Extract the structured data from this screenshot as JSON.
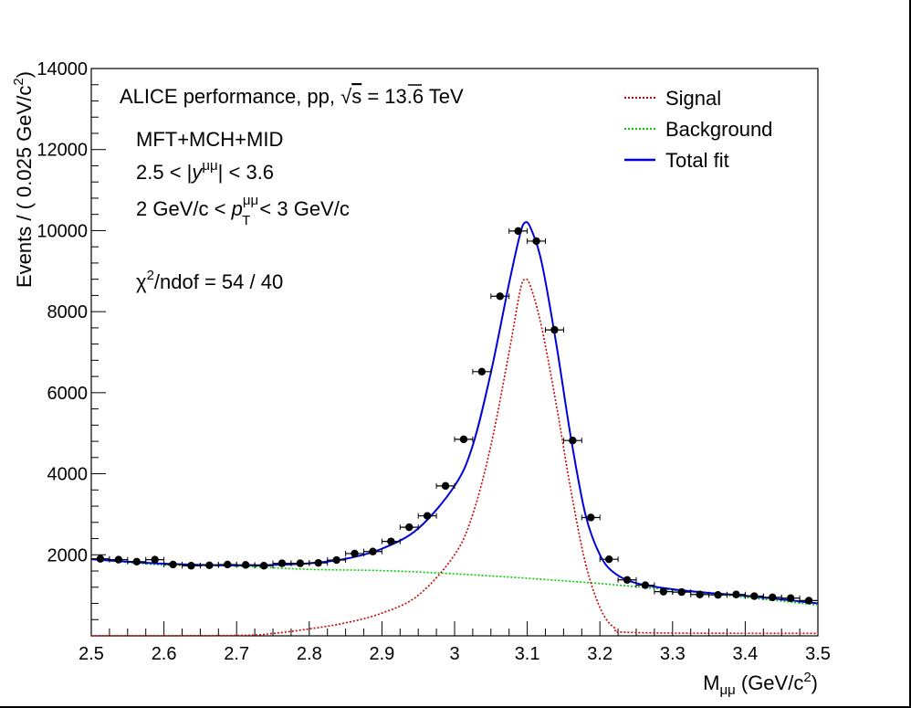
{
  "chart_data": {
    "type": "scatter",
    "xlabel": "M",
    "xlabel_sub": "μμ",
    "xlabel_unit": " (GeV/c",
    "xlabel_unit_sup": "2",
    "xlabel_unit_close": ")",
    "ylabel": "Events / ( 0.025 GeV/c",
    "ylabel_sup": "2",
    "ylabel_close": ")",
    "xlim": [
      2.5,
      3.5
    ],
    "ylim": [
      0,
      14000
    ],
    "x_tick_labels": [
      "2.5",
      "2.6",
      "2.7",
      "2.8",
      "2.9",
      "3",
      "3.1",
      "3.2",
      "3.3",
      "3.4",
      "3.5"
    ],
    "x_tick_values": [
      2.5,
      2.6,
      2.7,
      2.8,
      2.9,
      3.0,
      3.1,
      3.2,
      3.3,
      3.4,
      3.5
    ],
    "y_tick_labels": [
      "2000",
      "4000",
      "6000",
      "8000",
      "10000",
      "12000",
      "14000"
    ],
    "y_tick_values": [
      2000,
      4000,
      6000,
      8000,
      10000,
      12000,
      14000
    ],
    "annotations": {
      "line1_a": "ALICE performance, pp, ",
      "line1_sqrt": "√",
      "line1_s": "s",
      "line1_b": " = 13.6 TeV",
      "line2": "MFT+MCH+MID",
      "line3_a": "2.5 < |",
      "line3_y": "y",
      "line3_sup": "μμ",
      "line3_b": "| < 3.6",
      "line4_a": "2 GeV/c < ",
      "line4_p": "p",
      "line4_sup": "μμ",
      "line4_sub": "T",
      "line4_b": " < 3 GeV/c",
      "line5_a": "χ",
      "line5_sup": "2",
      "line5_b": "/ndof = 54 / 40"
    },
    "legend": [
      {
        "label": "Signal",
        "color": "#cc0000",
        "style": "dotted"
      },
      {
        "label": "Background",
        "color": "#00cc00",
        "style": "dotted"
      },
      {
        "label": "Total fit",
        "color": "#0000dd",
        "style": "solid"
      }
    ],
    "legend_placement": "top-right",
    "data_points": {
      "x_half_width": 0.0125,
      "points": [
        [
          2.5125,
          1900
        ],
        [
          2.5375,
          1880
        ],
        [
          2.5625,
          1830
        ],
        [
          2.5875,
          1880
        ],
        [
          2.6125,
          1760
        ],
        [
          2.6375,
          1730
        ],
        [
          2.6625,
          1740
        ],
        [
          2.6875,
          1760
        ],
        [
          2.7125,
          1750
        ],
        [
          2.7375,
          1730
        ],
        [
          2.7625,
          1790
        ],
        [
          2.7875,
          1790
        ],
        [
          2.8125,
          1800
        ],
        [
          2.8375,
          1870
        ],
        [
          2.8625,
          2030
        ],
        [
          2.8875,
          2080
        ],
        [
          2.9125,
          2330
        ],
        [
          2.9375,
          2680
        ],
        [
          2.9625,
          2960
        ],
        [
          2.9875,
          3700
        ],
        [
          3.0125,
          4850
        ],
        [
          3.0375,
          6520
        ],
        [
          3.0625,
          8380
        ],
        [
          3.0875,
          9990
        ],
        [
          3.1125,
          9740
        ],
        [
          3.1375,
          7550
        ],
        [
          3.1625,
          4820
        ],
        [
          3.1875,
          2920
        ],
        [
          3.2125,
          1890
        ],
        [
          3.2375,
          1380
        ],
        [
          3.2625,
          1250
        ],
        [
          3.2875,
          1090
        ],
        [
          3.3125,
          1080
        ],
        [
          3.3375,
          1020
        ],
        [
          3.3625,
          1010
        ],
        [
          3.3875,
          1020
        ],
        [
          3.4125,
          980
        ],
        [
          3.4375,
          950
        ],
        [
          3.4625,
          930
        ],
        [
          3.4875,
          870
        ]
      ]
    },
    "total_fit": [
      [
        2.5,
        1890
      ],
      [
        2.55,
        1830
      ],
      [
        2.6,
        1780
      ],
      [
        2.65,
        1750
      ],
      [
        2.7,
        1740
      ],
      [
        2.75,
        1750
      ],
      [
        2.8,
        1790
      ],
      [
        2.85,
        1900
      ],
      [
        2.9,
        2150
      ],
      [
        2.95,
        2650
      ],
      [
        3.0,
        3700
      ],
      [
        3.025,
        4700
      ],
      [
        3.05,
        6500
      ],
      [
        3.075,
        8700
      ],
      [
        3.09,
        9900
      ],
      [
        3.097,
        10200
      ],
      [
        3.105,
        10050
      ],
      [
        3.12,
        9200
      ],
      [
        3.14,
        7200
      ],
      [
        3.16,
        4900
      ],
      [
        3.18,
        3000
      ],
      [
        3.2,
        2000
      ],
      [
        3.22,
        1550
      ],
      [
        3.25,
        1300
      ],
      [
        3.3,
        1150
      ],
      [
        3.35,
        1060
      ],
      [
        3.4,
        990
      ],
      [
        3.45,
        900
      ],
      [
        3.5,
        800
      ]
    ],
    "signal": [
      [
        2.5,
        0
      ],
      [
        2.7,
        10
      ],
      [
        2.75,
        60
      ],
      [
        2.8,
        170
      ],
      [
        2.85,
        320
      ],
      [
        2.9,
        560
      ],
      [
        2.95,
        1000
      ],
      [
        3.0,
        2000
      ],
      [
        3.025,
        3000
      ],
      [
        3.05,
        4700
      ],
      [
        3.075,
        7000
      ],
      [
        3.09,
        8500
      ],
      [
        3.097,
        8800
      ],
      [
        3.105,
        8600
      ],
      [
        3.12,
        7600
      ],
      [
        3.14,
        5700
      ],
      [
        3.16,
        3600
      ],
      [
        3.18,
        1800
      ],
      [
        3.2,
        700
      ],
      [
        3.22,
        200
      ],
      [
        3.25,
        80
      ],
      [
        3.5,
        60
      ]
    ],
    "background": [
      [
        2.5,
        1890
      ],
      [
        2.6,
        1750
      ],
      [
        2.7,
        1720
      ],
      [
        2.8,
        1640
      ],
      [
        2.9,
        1610
      ],
      [
        3.0,
        1530
      ],
      [
        3.1,
        1420
      ],
      [
        3.2,
        1290
      ],
      [
        3.3,
        1130
      ],
      [
        3.4,
        950
      ],
      [
        3.5,
        760
      ]
    ]
  }
}
